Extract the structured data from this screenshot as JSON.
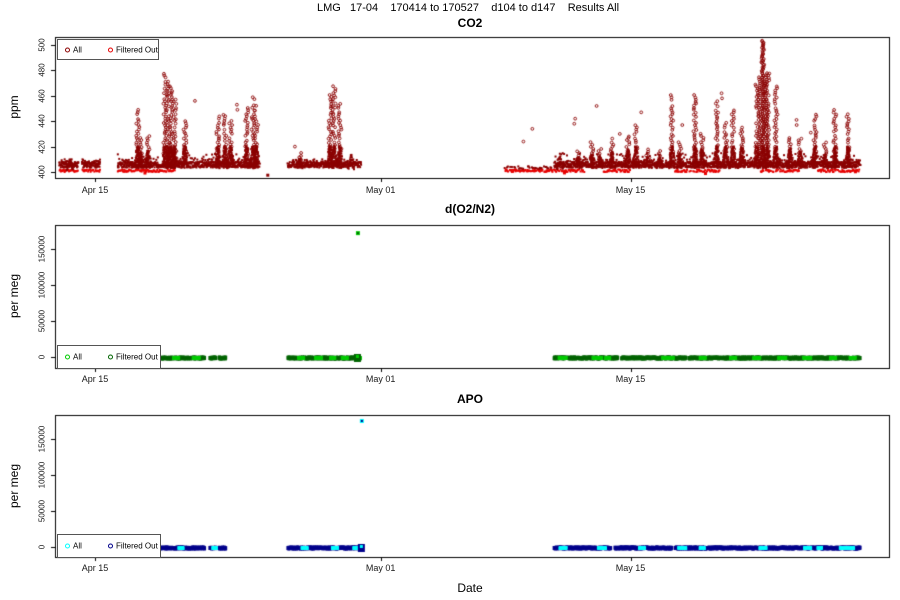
{
  "window": {
    "title": "LMG   17-04    170414 to 170527    d104 to d147    Results All"
  },
  "xlabel": "Date",
  "x_axis": {
    "epoch": "2017-04-14",
    "unit": "days since 2017-04-14",
    "xlim_days": [
      -1.24,
      45.48
    ],
    "ticks": [
      {
        "label": "Apr 15",
        "day": 1
      },
      {
        "label": "May 01",
        "day": 17
      },
      {
        "label": "May 15",
        "day": 31
      }
    ]
  },
  "chart_data": [
    {
      "type": "scatter",
      "title": "CO2",
      "ylabel": "ppm",
      "ylim": [
        395.3,
        506.3
      ],
      "yticks": [
        400,
        420,
        440,
        460,
        480,
        500
      ],
      "legend_position": "top-left",
      "series": [
        {
          "name": "All",
          "color": "#8B0000"
        },
        {
          "name": "Filtered Out",
          "color": "#E60000"
        }
      ],
      "baseline": {
        "value": 405,
        "spread": 4.5,
        "segments_days": [
          [
            -0.98,
            0.08
          ],
          [
            0.3,
            1.3
          ],
          [
            2.28,
            10.15
          ],
          [
            11.8,
            15.9
          ],
          [
            26.72,
            43.87
          ]
        ],
        "sparse_segments_days": [
          [
            23.95,
            26.6
          ]
        ]
      },
      "filtered_baseline": {
        "value": 400.6,
        "segments_days": [
          [
            -0.98,
            0.08
          ],
          [
            0.3,
            1.3
          ],
          [
            2.28,
            5.5
          ],
          [
            24.0,
            28.5
          ],
          [
            29.5,
            31.0
          ],
          [
            33.5,
            36.0
          ],
          [
            38.3,
            40.5
          ],
          [
            41.5,
            43.87
          ]
        ]
      },
      "spikes_day_peak": [
        [
          -0.4,
          411
        ],
        [
          3.4,
          450
        ],
        [
          3.56,
          428
        ],
        [
          3.97,
          430
        ],
        [
          4.92,
          478
        ],
        [
          5.1,
          472
        ],
        [
          5.27,
          468
        ],
        [
          5.48,
          458
        ],
        [
          6.04,
          441
        ],
        [
          7.89,
          444
        ],
        [
          8.28,
          446
        ],
        [
          8.6,
          442
        ],
        [
          9.5,
          452
        ],
        [
          9.85,
          460
        ],
        [
          10.05,
          454
        ],
        [
          12.48,
          416
        ],
        [
          14.16,
          462
        ],
        [
          14.4,
          470
        ],
        [
          14.72,
          455
        ],
        [
          15.35,
          414
        ],
        [
          27.05,
          413
        ],
        [
          28.05,
          418
        ],
        [
          28.84,
          424
        ],
        [
          29.28,
          421
        ],
        [
          29.96,
          428
        ],
        [
          30.85,
          432
        ],
        [
          31.3,
          438
        ],
        [
          31.97,
          419
        ],
        [
          32.65,
          417
        ],
        [
          33.32,
          463
        ],
        [
          33.77,
          425
        ],
        [
          34.61,
          462
        ],
        [
          35.0,
          432
        ],
        [
          35.84,
          456
        ],
        [
          36.34,
          440
        ],
        [
          36.74,
          450
        ],
        [
          37.24,
          436
        ],
        [
          38.08,
          470
        ],
        [
          38.42,
          504
        ],
        [
          38.7,
          478
        ],
        [
          39.15,
          468
        ],
        [
          39.93,
          432
        ],
        [
          40.49,
          428
        ],
        [
          41.33,
          446
        ],
        [
          41.89,
          424
        ],
        [
          42.45,
          450
        ],
        [
          43.18,
          447
        ]
      ],
      "scatter_dots_day_value": [
        [
          6.6,
          456
        ],
        [
          8.95,
          453
        ],
        [
          12.2,
          420
        ],
        [
          25.0,
          424
        ],
        [
          25.5,
          434
        ],
        [
          27.9,
          442
        ],
        [
          29.1,
          452
        ],
        [
          30.4,
          430
        ],
        [
          31.6,
          447
        ],
        [
          33.9,
          437
        ],
        [
          36.1,
          462
        ],
        [
          40.3,
          441
        ],
        [
          41.1,
          431
        ]
      ],
      "below_dots": [
        {
          "day": 3.8,
          "value": 399.2,
          "series": "Filtered Out"
        },
        {
          "day": 10.68,
          "value": 397.5,
          "series": "All"
        },
        {
          "day": 27.3,
          "value": 399.3,
          "series": "Filtered Out"
        },
        {
          "day": 35.2,
          "value": 398.8,
          "series": "Filtered Out"
        },
        {
          "day": 43.6,
          "value": 400.2,
          "series": "Filtered Out"
        }
      ]
    },
    {
      "type": "scatter",
      "title": "d(O2/N2)",
      "ylabel": "per meg",
      "ylim": [
        -15300,
        183300
      ],
      "yticks": [
        0,
        50000,
        100000,
        150000
      ],
      "legend_position": "bottom-left",
      "series": [
        {
          "name": "All",
          "color": "#00CC00"
        },
        {
          "name": "Filtered Out",
          "color": "#006400"
        }
      ],
      "baseline": {
        "value": 0,
        "segments_days": [
          [
            -1.0,
            7.16
          ],
          [
            7.44,
            7.78
          ],
          [
            7.95,
            8.34
          ],
          [
            11.81,
            15.88
          ],
          [
            26.72,
            43.87
          ]
        ]
      },
      "gaps_days": [
        [
          30.3,
          30.5
        ],
        [
          34.1,
          34.25
        ]
      ],
      "bright_patches_days": [
        [
          5.4,
          0.3
        ],
        [
          6.5,
          0.35
        ],
        [
          12.4,
          0.3
        ],
        [
          13.35,
          0.35
        ],
        [
          14.2,
          0.25
        ],
        [
          14.85,
          0.3
        ],
        [
          15.6,
          0.28
        ],
        [
          27.0,
          0.4
        ],
        [
          28.9,
          0.5
        ],
        [
          29.6,
          0.25
        ],
        [
          32.8,
          0.6
        ],
        [
          34.9,
          0.3
        ],
        [
          36.6,
          0.3
        ],
        [
          37.9,
          0.35
        ],
        [
          39.3,
          0.4
        ],
        [
          40.7,
          0.4
        ],
        [
          42.2,
          0.3
        ],
        [
          43.3,
          0.3
        ]
      ],
      "outlier": {
        "day": 15.73,
        "value": 172000
      }
    },
    {
      "type": "scatter",
      "title": "APO",
      "ylabel": "per meg",
      "ylim": [
        -13900,
        183300
      ],
      "yticks": [
        0,
        50000,
        100000,
        150000
      ],
      "legend_position": "bottom-left",
      "series": [
        {
          "name": "All",
          "color": "#00FFFF"
        },
        {
          "name": "Filtered Out",
          "color": "#00008B"
        }
      ],
      "baseline": {
        "value": 0,
        "segments_days": [
          [
            -1.0,
            7.16
          ],
          [
            7.44,
            7.78
          ],
          [
            7.95,
            8.34
          ],
          [
            11.81,
            15.88
          ],
          [
            26.72,
            43.87
          ]
        ]
      },
      "gaps_days": [
        [
          29.9,
          30.12
        ],
        [
          33.3,
          33.48
        ]
      ],
      "bright_patches_days": [
        [
          5.7,
          0.25
        ],
        [
          7.6,
          0.2
        ],
        [
          12.6,
          0.3
        ],
        [
          14.3,
          0.3
        ],
        [
          15.5,
          0.2
        ],
        [
          27.05,
          0.35
        ],
        [
          29.2,
          0.4
        ],
        [
          31.5,
          0.3
        ],
        [
          33.7,
          0.4
        ],
        [
          34.9,
          0.25
        ],
        [
          38.25,
          0.35
        ],
        [
          40.75,
          0.35
        ],
        [
          41.5,
          0.2
        ],
        [
          42.75,
          0.45
        ],
        [
          43.3,
          0.2
        ]
      ],
      "outlier": {
        "day": 15.95,
        "value": 175000
      }
    }
  ]
}
